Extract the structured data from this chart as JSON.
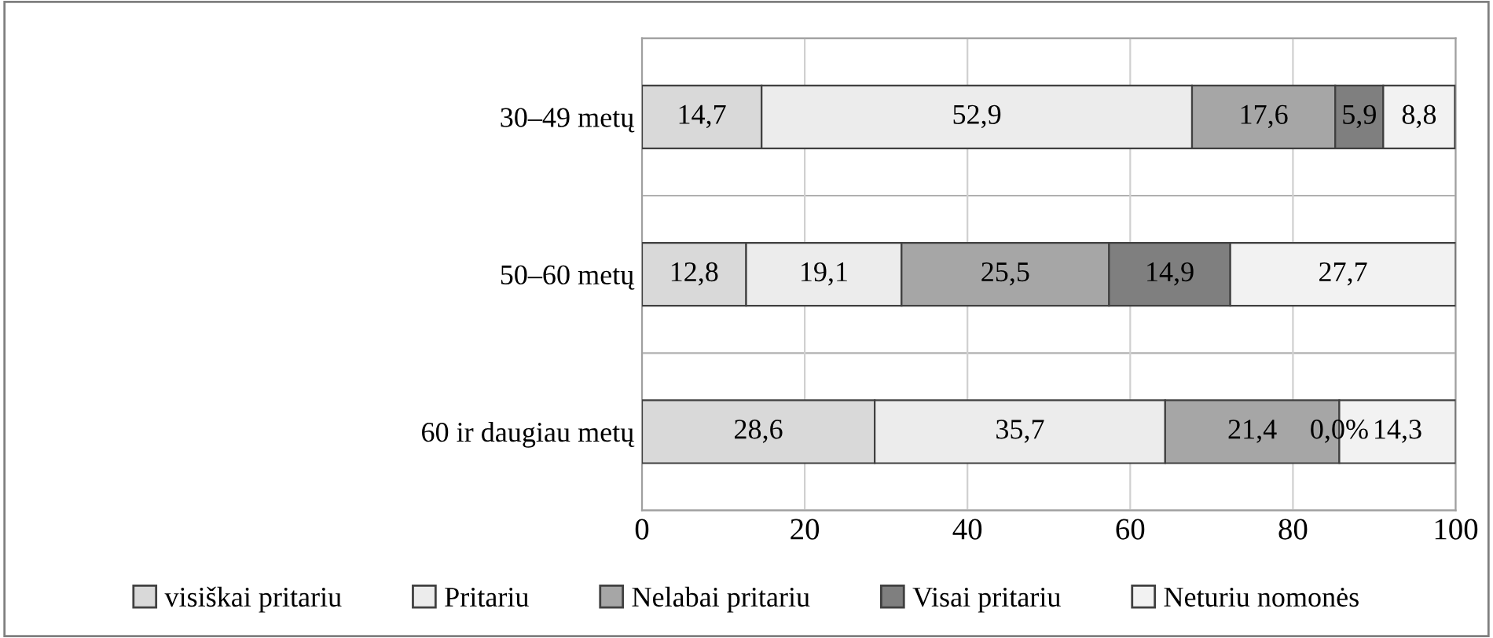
{
  "chart_data": {
    "type": "bar",
    "orientation": "horizontal",
    "stacked": true,
    "categories": [
      "30–49 metų",
      "50–60 metų",
      "60 ir daugiau metų"
    ],
    "series": [
      {
        "name": "visiškai pritariu",
        "color": "#d9d9d9",
        "values": [
          14.7,
          12.8,
          28.6
        ],
        "value_labels": [
          "14,7",
          "12,8",
          "28,6"
        ]
      },
      {
        "name": "Pritariu",
        "color": "#ececec",
        "values": [
          52.9,
          19.1,
          35.7
        ],
        "value_labels": [
          "52,9",
          "19,1",
          "35,7"
        ]
      },
      {
        "name": "Nelabai pritariu",
        "color": "#a6a6a6",
        "values": [
          17.6,
          25.5,
          21.4
        ],
        "value_labels": [
          "17,6",
          "25,5",
          "21,4"
        ]
      },
      {
        "name": "Visai pritariu",
        "color": "#7f7f7f",
        "values": [
          5.9,
          14.9,
          0.0
        ],
        "value_labels": [
          "5,9",
          "14,9",
          "0,0%"
        ]
      },
      {
        "name": "Neturiu nomonės",
        "color": "#f2f2f2",
        "values": [
          8.8,
          27.7,
          14.3
        ],
        "value_labels": [
          "8,8",
          "27,7",
          "14,3"
        ]
      }
    ],
    "xlim": [
      0,
      100
    ],
    "xticks": [
      0,
      20,
      40,
      60,
      80,
      100
    ],
    "grid": true,
    "legend": "bottom"
  }
}
